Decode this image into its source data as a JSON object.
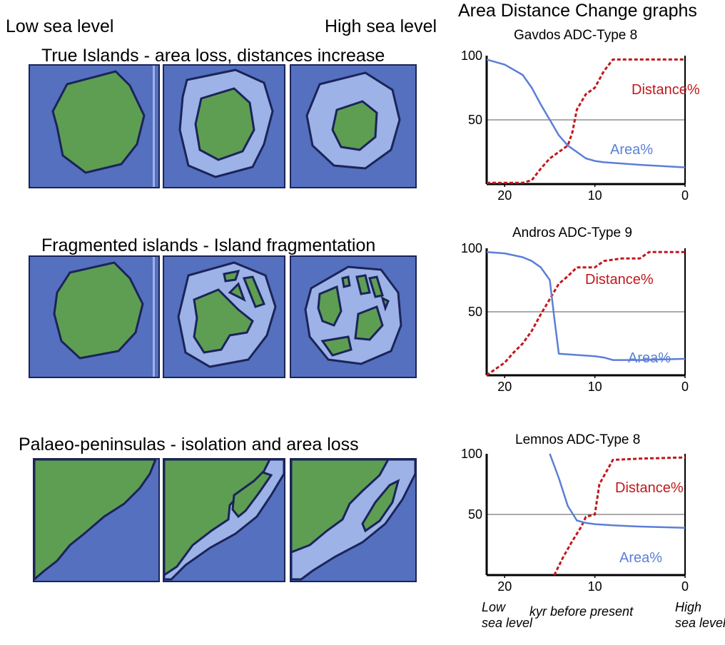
{
  "headings": {
    "low_sea_level": "Low sea level",
    "high_sea_level": "High sea level",
    "graphs_title": "Area Distance Change graphs"
  },
  "rows": [
    {
      "title": "True Islands - area loss, distances increase"
    },
    {
      "title": "Fragmented islands - Island fragmentation"
    },
    {
      "title": "Palaeo-peninsulas - isolation and area loss"
    }
  ],
  "colors": {
    "sea": "#5570bf",
    "shelf": "#9db2e6",
    "land": "#5e9e52",
    "outline": "#1b2459",
    "area_line": "#5b7fd6",
    "distance_line": "#c0181c"
  },
  "chart_data": [
    {
      "type": "line",
      "title": "Gavdos ADC-Type 8",
      "xlim": [
        22,
        0
      ],
      "ylim": [
        0,
        100
      ],
      "x_ticks": [
        "20",
        "10",
        "0"
      ],
      "y_ticks": [
        "100",
        "50"
      ],
      "series": [
        {
          "name": "Distance%",
          "style": "dashed",
          "x": [
            22,
            18,
            17,
            16,
            15,
            14,
            13,
            12.5,
            12,
            11,
            10,
            9,
            8,
            5,
            0
          ],
          "y": [
            1,
            1,
            3,
            12,
            20,
            25,
            30,
            40,
            58,
            70,
            75,
            88,
            97,
            97,
            97
          ]
        },
        {
          "name": "Area%",
          "style": "solid",
          "x": [
            22,
            20,
            18,
            17,
            16,
            15,
            14,
            13,
            12,
            11,
            10,
            9,
            5,
            0
          ],
          "y": [
            97,
            93,
            85,
            75,
            62,
            50,
            38,
            30,
            25,
            20,
            18,
            17,
            15,
            13
          ]
        }
      ]
    },
    {
      "type": "line",
      "title": "Andros ADC-Type 9",
      "xlim": [
        22,
        0
      ],
      "ylim": [
        0,
        100
      ],
      "x_ticks": [
        "20",
        "10",
        "0"
      ],
      "y_ticks": [
        "100",
        "50"
      ],
      "series": [
        {
          "name": "Distance%",
          "style": "dashed",
          "x": [
            22,
            20,
            19,
            18,
            17,
            16,
            15,
            14,
            13,
            12,
            10,
            9,
            7,
            5,
            4,
            0
          ],
          "y": [
            0,
            10,
            18,
            25,
            35,
            48,
            60,
            72,
            78,
            85,
            85,
            90,
            92,
            92,
            97,
            97
          ]
        },
        {
          "name": "Area%",
          "style": "solid",
          "x": [
            22,
            20,
            18,
            17,
            16,
            15,
            14.5,
            14,
            12,
            10,
            9,
            8,
            5,
            0
          ],
          "y": [
            97,
            96,
            93,
            90,
            85,
            75,
            45,
            17,
            16,
            15,
            14,
            12,
            12,
            13
          ]
        }
      ]
    },
    {
      "type": "line",
      "title": "Lemnos ADC-Type 8",
      "xlim": [
        22,
        0
      ],
      "ylim": [
        0,
        100
      ],
      "x_ticks": [
        "20",
        "10",
        "0"
      ],
      "y_ticks": [
        "100",
        "50"
      ],
      "x_annotations": {
        "left": "Low\nsea level",
        "center": "kyr before present",
        "right": "High\nsea level"
      },
      "series": [
        {
          "name": "Distance%",
          "style": "dashed",
          "x": [
            14.5,
            13.5,
            12.5,
            11.5,
            11,
            10,
            9.5,
            8,
            5,
            0
          ],
          "y": [
            0,
            15,
            28,
            40,
            48,
            50,
            75,
            95,
            96,
            97
          ]
        },
        {
          "name": "Area%",
          "style": "solid",
          "x": [
            15,
            14,
            13,
            12,
            11,
            10,
            8,
            5,
            0
          ],
          "y": [
            100,
            80,
            57,
            45,
            43,
            42,
            41,
            40,
            39
          ]
        }
      ]
    }
  ]
}
